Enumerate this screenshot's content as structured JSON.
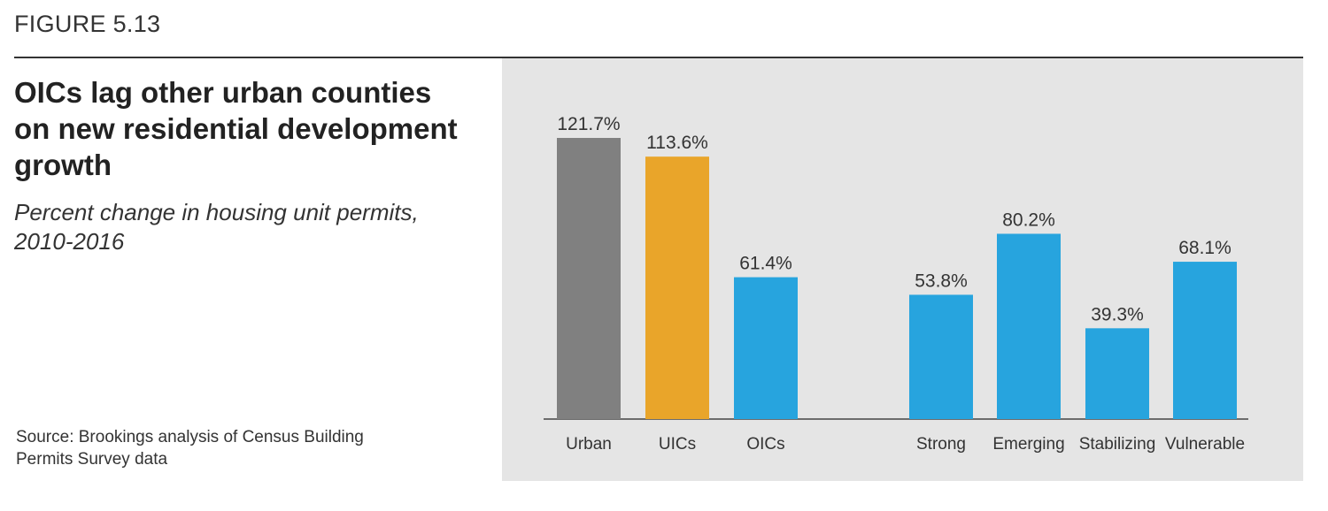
{
  "figure_label": "FIGURE 5.13",
  "title": "OICs lag other urban counties on new residential development growth",
  "subtitle": "Percent change in housing unit permits, 2010-2016",
  "source": "Source: Brookings analysis of Census Building Permits Survey data",
  "colors": {
    "urban": "#808080",
    "uics": "#e9a52a",
    "oics": "#27a4de",
    "panel": "#e5e5e5"
  },
  "chart_data": {
    "type": "bar",
    "title": "OICs lag other urban counties on new residential development growth",
    "subtitle": "Percent change in housing unit permits, 2010-2016",
    "categories": [
      "Urban",
      "UICs",
      "OICs",
      "Strong",
      "Emerging",
      "Stabilizing",
      "Vulnerable"
    ],
    "values": [
      121.7,
      113.6,
      61.4,
      53.8,
      80.2,
      39.3,
      68.1
    ],
    "value_labels": [
      "121.7%",
      "113.6%",
      "61.4%",
      "53.8%",
      "80.2%",
      "39.3%",
      "68.1%"
    ],
    "bar_colors": [
      "#808080",
      "#e9a52a",
      "#27a4de",
      "#27a4de",
      "#27a4de",
      "#27a4de",
      "#27a4de"
    ],
    "groups": [
      [
        0,
        1,
        2
      ],
      [
        3,
        4,
        5,
        6
      ]
    ],
    "xlabel": "",
    "ylabel": "",
    "ylim": [
      0,
      130
    ],
    "grid": false,
    "legend": "none"
  }
}
